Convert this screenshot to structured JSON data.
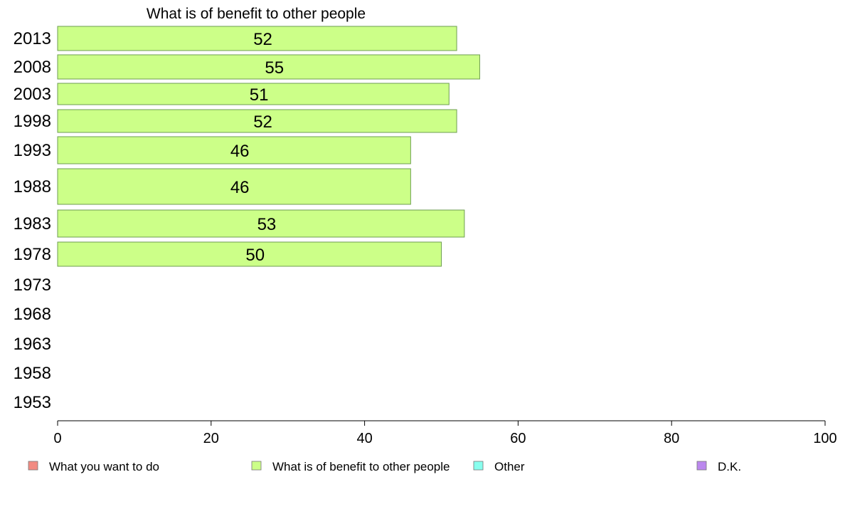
{
  "chart_data": {
    "type": "bar",
    "orientation": "horizontal",
    "title": "What is of benefit to other people",
    "categories": [
      "2013",
      "2008",
      "2003",
      "1998",
      "1993",
      "1988",
      "1983",
      "1978",
      "1973",
      "1968",
      "1963",
      "1958",
      "1953"
    ],
    "series": [
      {
        "name": "What is of benefit to other people",
        "color": "#ccff88",
        "values": [
          52,
          55,
          51,
          52,
          46,
          46,
          53,
          50,
          null,
          null,
          null,
          null,
          null
        ]
      }
    ],
    "xlim": [
      0,
      100
    ],
    "xticks": [
      0,
      20,
      40,
      60,
      80,
      100
    ],
    "grid": false,
    "legend": {
      "position": "bottom",
      "items": [
        {
          "label": "What you want to do",
          "color": "#f28b82"
        },
        {
          "label": "What is of benefit to other people",
          "color": "#ccff88"
        },
        {
          "label": "Other",
          "color": "#88ffee"
        },
        {
          "label": "D.K.",
          "color": "#bb88ee"
        }
      ]
    }
  }
}
